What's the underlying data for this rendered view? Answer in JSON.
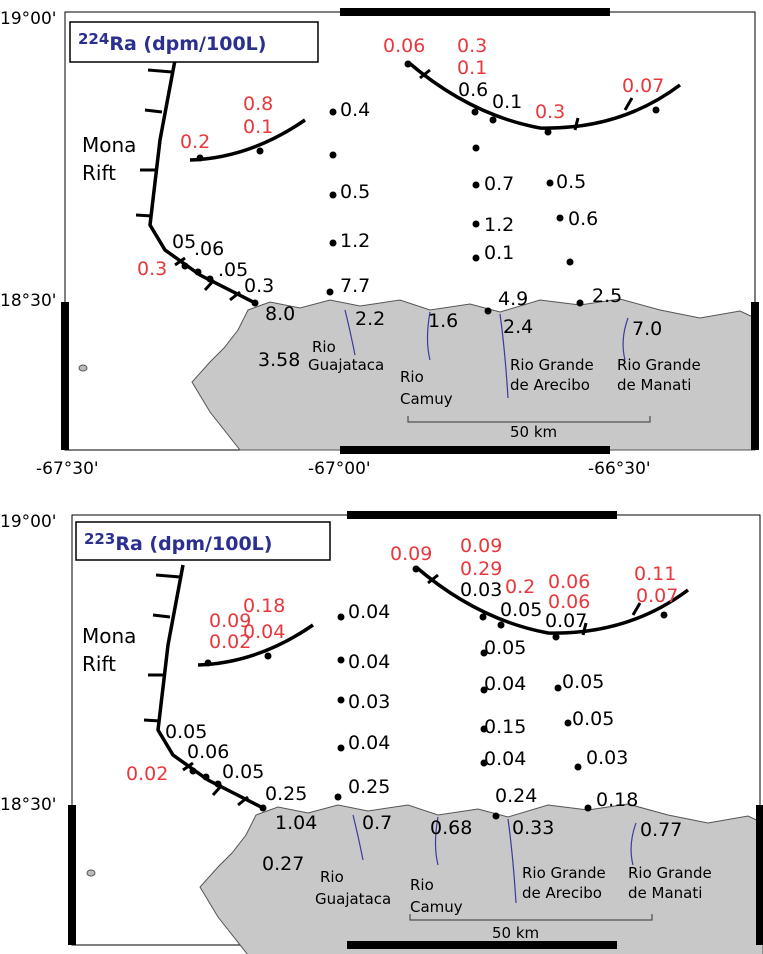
{
  "maps": [
    {
      "title_isotope": "224",
      "title_unit": "Ra (dpm/100L)",
      "lat_labels": [
        "19°00'",
        "18°30'"
      ],
      "lon_labels": [
        "-67°30'",
        "-67°00'",
        "-66°30'"
      ],
      "place_labels": [
        "Mona",
        "Rift"
      ],
      "river_labels": [
        "Rio",
        "Guajataca",
        "Rio",
        "Camuy",
        "Rio Grande",
        "de Arecibo",
        "Rio Grande",
        "de Manati"
      ],
      "scale": "50 km",
      "labels": [
        {
          "text": "0.06",
          "color": "#e8383d"
        },
        {
          "text": "0.3",
          "color": "#e8383d"
        },
        {
          "text": "0.1",
          "color": "#e8383d"
        },
        {
          "text": "0.07",
          "color": "#e8383d"
        },
        {
          "text": "0.3",
          "color": "#e8383d"
        },
        {
          "text": "0.8",
          "color": "#e8383d"
        },
        {
          "text": "0.1",
          "color": "#e8383d"
        },
        {
          "text": "0.2",
          "color": "#e8383d"
        },
        {
          "text": "0.3",
          "color": "#e8383d"
        },
        {
          "text": "0.6",
          "color": "#000000"
        },
        {
          "text": "0.1",
          "color": "#000000"
        },
        {
          "text": "0.4",
          "color": "#000000"
        },
        {
          "text": "0.5",
          "color": "#000000"
        },
        {
          "text": "1.2",
          "color": "#000000"
        },
        {
          "text": "7.7",
          "color": "#000000"
        },
        {
          "text": "0.7",
          "color": "#000000"
        },
        {
          "text": "0.5",
          "color": "#000000"
        },
        {
          "text": "1.2",
          "color": "#000000"
        },
        {
          "text": "0.6",
          "color": "#000000"
        },
        {
          "text": "0.1",
          "color": "#000000"
        },
        {
          "text": "05",
          "color": "#000000"
        },
        {
          "text": ".06",
          "color": "#000000"
        },
        {
          "text": ".05",
          "color": "#000000"
        },
        {
          "text": "0.3",
          "color": "#000000"
        },
        {
          "text": "8.0",
          "color": "#000000"
        },
        {
          "text": "2.2",
          "color": "#000000"
        },
        {
          "text": "3.58",
          "color": "#000000"
        },
        {
          "text": "1.6",
          "color": "#000000"
        },
        {
          "text": "4.9",
          "color": "#000000"
        },
        {
          "text": "2.4",
          "color": "#000000"
        },
        {
          "text": "2.5",
          "color": "#000000"
        },
        {
          "text": "7.0",
          "color": "#000000"
        }
      ]
    },
    {
      "title_isotope": "223",
      "title_unit": "Ra (dpm/100L)",
      "lat_labels": [
        "19°00'",
        "18°30'"
      ],
      "place_labels": [
        "Mona",
        "Rift"
      ],
      "river_labels": [
        "Rio",
        "Guajataca",
        "Rio",
        "Camuy",
        "Rio Grande",
        "de Arecibo",
        "Rio Grande",
        "de Manati"
      ],
      "scale": "50 km",
      "labels": [
        {
          "text": "0.09",
          "color": "#e8383d"
        },
        {
          "text": "0.09",
          "color": "#e8383d"
        },
        {
          "text": "0.29",
          "color": "#e8383d"
        },
        {
          "text": "0.2",
          "color": "#e8383d"
        },
        {
          "text": "0.06",
          "color": "#e8383d"
        },
        {
          "text": "0.06",
          "color": "#e8383d"
        },
        {
          "text": "0.11",
          "color": "#e8383d"
        },
        {
          "text": "0.07",
          "color": "#e8383d"
        },
        {
          "text": "0.09",
          "color": "#e8383d"
        },
        {
          "text": "0.02",
          "color": "#e8383d"
        },
        {
          "text": "0.18",
          "color": "#e8383d"
        },
        {
          "text": "0.04",
          "color": "#e8383d"
        },
        {
          "text": "0.02",
          "color": "#e8383d"
        },
        {
          "text": "0.03",
          "color": "#000000"
        },
        {
          "text": "0.05",
          "color": "#000000"
        },
        {
          "text": "0.07",
          "color": "#000000"
        },
        {
          "text": "0.04",
          "color": "#000000"
        },
        {
          "text": "0.04",
          "color": "#000000"
        },
        {
          "text": "0.03",
          "color": "#000000"
        },
        {
          "text": "0.04",
          "color": "#000000"
        },
        {
          "text": "0.25",
          "color": "#000000"
        },
        {
          "text": "0.05",
          "color": "#000000"
        },
        {
          "text": "0.04",
          "color": "#000000"
        },
        {
          "text": "0.05",
          "color": "#000000"
        },
        {
          "text": "0.15",
          "color": "#000000"
        },
        {
          "text": "0.05",
          "color": "#000000"
        },
        {
          "text": "0.04",
          "color": "#000000"
        },
        {
          "text": "0.03",
          "color": "#000000"
        },
        {
          "text": "0.24",
          "color": "#000000"
        },
        {
          "text": "0.18",
          "color": "#000000"
        },
        {
          "text": "0.05",
          "color": "#000000"
        },
        {
          "text": "0.06",
          "color": "#000000"
        },
        {
          "text": "0.05",
          "color": "#000000"
        },
        {
          "text": "0.25",
          "color": "#000000"
        },
        {
          "text": "1.04",
          "color": "#000000"
        },
        {
          "text": "0.7",
          "color": "#000000"
        },
        {
          "text": "0.68",
          "color": "#000000"
        },
        {
          "text": "0.33",
          "color": "#000000"
        },
        {
          "text": "0.77",
          "color": "#000000"
        },
        {
          "text": "0.27",
          "color": "#000000"
        }
      ]
    }
  ]
}
